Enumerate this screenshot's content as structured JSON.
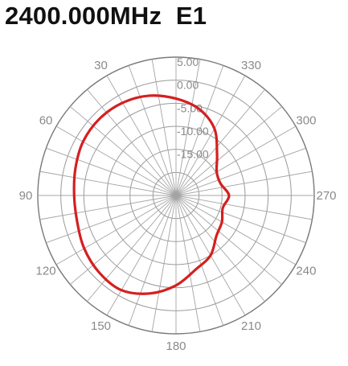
{
  "chart_data": {
    "type": "polar-line",
    "title": "2400.000MHz  E1",
    "angle_unit": "deg",
    "angle_zero": "top",
    "angle_direction": "counter-clockwise",
    "angle_ticks": [
      0,
      30,
      60,
      90,
      120,
      150,
      180,
      210,
      240,
      270,
      300,
      330
    ],
    "angle_tick_labels": [
      "",
      "30",
      "60",
      "90",
      "120",
      "150",
      "180",
      "210",
      "240",
      "270",
      "300",
      "330"
    ],
    "radial_ticks": [
      5,
      0,
      -5,
      -10,
      -15
    ],
    "radial_tick_labels": [
      "5.00",
      "0.00",
      "-5.00",
      "-10.00",
      "-15.00"
    ],
    "r_range": [
      -25,
      5
    ],
    "grid": true,
    "series": [
      {
        "color": "#d42020",
        "theta": [
          0,
          15,
          30,
          45,
          60,
          75,
          90,
          105,
          120,
          135,
          150,
          165,
          180,
          195,
          210,
          225,
          240,
          255,
          270,
          285,
          300,
          315,
          330,
          345
        ],
        "r": [
          -4.0,
          -2.6,
          -1.8,
          -1.5,
          -1.7,
          -2.4,
          -2.9,
          -2.8,
          -2.0,
          -1.4,
          -1.3,
          -3.0,
          -5.5,
          -8.4,
          -10.0,
          -12.6,
          -13.5,
          -14.5,
          -13.5,
          -15.0,
          -14.8,
          -12.4,
          -8.3,
          -5.6
        ]
      }
    ]
  }
}
